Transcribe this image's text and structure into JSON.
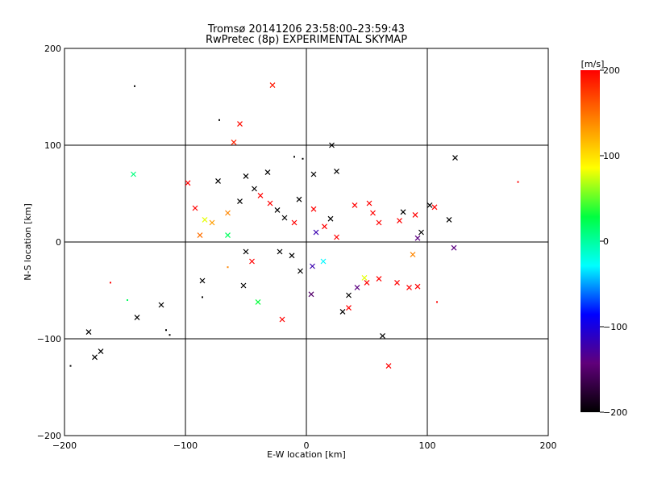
{
  "chart_data": {
    "type": "scatter",
    "title": "Tromsø 20141206 23:58:00–23:59:43",
    "subtitle": "RwPretec (8p) EXPERIMENTAL SKYMAP",
    "xlabel": "E-W location [km]",
    "ylabel": "N-S location [km]",
    "xlim": [
      -200,
      200
    ],
    "ylim": [
      -200,
      200
    ],
    "xticks": [
      "−200",
      "−100",
      "0",
      "100",
      "200"
    ],
    "yticks": [
      "200",
      "100",
      "0",
      "−100",
      "−200"
    ],
    "grid": true,
    "colorbar": {
      "label": "[m/s]",
      "range": [
        -200,
        200
      ],
      "ticks": [
        "200",
        "100",
        "0",
        "−100",
        "−200"
      ],
      "colors": [
        "#000000",
        "#60007a",
        "#0000ff",
        "#00ffff",
        "#00ff40",
        "#ffff00",
        "#ff8000",
        "#ff0000"
      ]
    },
    "series": [
      {
        "name": "large-marks",
        "marker": "x",
        "points": [
          {
            "x": -28,
            "y": 162,
            "v": 190
          },
          {
            "x": -55,
            "y": 122,
            "v": 195
          },
          {
            "x": -60,
            "y": 103,
            "v": 185
          },
          {
            "x": 21,
            "y": 100,
            "v": -200
          },
          {
            "x": -143,
            "y": 70,
            "v": 10
          },
          {
            "x": -98,
            "y": 61,
            "v": 200
          },
          {
            "x": -73,
            "y": 63,
            "v": -200
          },
          {
            "x": -50,
            "y": 68,
            "v": -200
          },
          {
            "x": -32,
            "y": 72,
            "v": -200
          },
          {
            "x": 123,
            "y": 87,
            "v": -200
          },
          {
            "x": 6,
            "y": 70,
            "v": -200
          },
          {
            "x": 25,
            "y": 73,
            "v": -200
          },
          {
            "x": -92,
            "y": 35,
            "v": 200
          },
          {
            "x": -84,
            "y": 23,
            "v": 80
          },
          {
            "x": -78,
            "y": 20,
            "v": 130
          },
          {
            "x": -65,
            "y": 30,
            "v": 140
          },
          {
            "x": -55,
            "y": 42,
            "v": -200
          },
          {
            "x": -43,
            "y": 55,
            "v": -200
          },
          {
            "x": 40,
            "y": 38,
            "v": 200
          },
          {
            "x": 52,
            "y": 40,
            "v": 200
          },
          {
            "x": 77,
            "y": 22,
            "v": 200
          },
          {
            "x": 80,
            "y": 31,
            "v": -200
          },
          {
            "x": 90,
            "y": 28,
            "v": 200
          },
          {
            "x": 102,
            "y": 38,
            "v": -200
          },
          {
            "x": 106,
            "y": 36,
            "v": 200
          },
          {
            "x": 118,
            "y": 23,
            "v": -200
          },
          {
            "x": 95,
            "y": 10,
            "v": -200
          },
          {
            "x": 92,
            "y": 4,
            "v": -140
          },
          {
            "x": 122,
            "y": -6,
            "v": -140
          },
          {
            "x": 88,
            "y": -13,
            "v": 140
          },
          {
            "x": 55,
            "y": 30,
            "v": 200
          },
          {
            "x": 60,
            "y": 20,
            "v": 200
          },
          {
            "x": -86,
            "y": -40,
            "v": -200
          },
          {
            "x": -52,
            "y": -45,
            "v": -200
          },
          {
            "x": -40,
            "y": -62,
            "v": 30
          },
          {
            "x": -20,
            "y": -80,
            "v": 200
          },
          {
            "x": 4,
            "y": -54,
            "v": -150
          },
          {
            "x": 30,
            "y": -72,
            "v": -200
          },
          {
            "x": 35,
            "y": -68,
            "v": 200
          },
          {
            "x": 63,
            "y": -97,
            "v": -200
          },
          {
            "x": 68,
            "y": -128,
            "v": 200
          },
          {
            "x": -120,
            "y": -65,
            "v": -200
          },
          {
            "x": -140,
            "y": -78,
            "v": -200
          },
          {
            "x": -180,
            "y": -93,
            "v": -200
          },
          {
            "x": -170,
            "y": -113,
            "v": -200
          },
          {
            "x": -175,
            "y": -119,
            "v": -200
          },
          {
            "x": -88,
            "y": 7,
            "v": 150
          },
          {
            "x": -65,
            "y": 7,
            "v": 20
          },
          {
            "x": -45,
            "y": -20,
            "v": 200
          },
          {
            "x": -50,
            "y": -10,
            "v": -200
          },
          {
            "x": 85,
            "y": -47,
            "v": 200
          },
          {
            "x": 92,
            "y": -46,
            "v": 200
          },
          {
            "x": 75,
            "y": -42,
            "v": 200
          },
          {
            "x": 50,
            "y": -42,
            "v": 200
          },
          {
            "x": 48,
            "y": -37,
            "v": 80
          },
          {
            "x": 42,
            "y": -47,
            "v": -140
          },
          {
            "x": 35,
            "y": -55,
            "v": -200
          },
          {
            "x": 60,
            "y": -38,
            "v": 200
          },
          {
            "x": -38,
            "y": 48,
            "v": 200
          },
          {
            "x": -30,
            "y": 40,
            "v": 200
          },
          {
            "x": -24,
            "y": 33,
            "v": -200
          },
          {
            "x": -18,
            "y": 25,
            "v": -200
          },
          {
            "x": -10,
            "y": 20,
            "v": 200
          },
          {
            "x": 8,
            "y": 10,
            "v": -120
          },
          {
            "x": 15,
            "y": 16,
            "v": 200
          },
          {
            "x": 20,
            "y": 24,
            "v": -200
          },
          {
            "x": 25,
            "y": 5,
            "v": 200
          },
          {
            "x": -12,
            "y": -14,
            "v": -200
          },
          {
            "x": -22,
            "y": -10,
            "v": -200
          },
          {
            "x": -5,
            "y": -30,
            "v": -200
          },
          {
            "x": 5,
            "y": -25,
            "v": -120
          },
          {
            "x": 14,
            "y": -20,
            "v": -30
          },
          {
            "x": 6,
            "y": 34,
            "v": 200
          },
          {
            "x": -6,
            "y": 44,
            "v": -200
          }
        ]
      },
      {
        "name": "small-marks",
        "marker": "+",
        "points": [
          {
            "x": -142,
            "y": 161,
            "v": -200
          },
          {
            "x": -72,
            "y": 126,
            "v": -200
          },
          {
            "x": -10,
            "y": 88,
            "v": -200
          },
          {
            "x": -3,
            "y": 86,
            "v": -200
          },
          {
            "x": 175,
            "y": 62,
            "v": 200
          },
          {
            "x": -162,
            "y": -42,
            "v": 200
          },
          {
            "x": -148,
            "y": -60,
            "v": 20
          },
          {
            "x": -116,
            "y": -91,
            "v": -200
          },
          {
            "x": -113,
            "y": -96,
            "v": -200
          },
          {
            "x": -86,
            "y": -57,
            "v": -200
          },
          {
            "x": -195,
            "y": -128,
            "v": -200
          },
          {
            "x": 108,
            "y": -62,
            "v": 200
          },
          {
            "x": -65,
            "y": -26,
            "v": 140
          }
        ]
      }
    ]
  }
}
